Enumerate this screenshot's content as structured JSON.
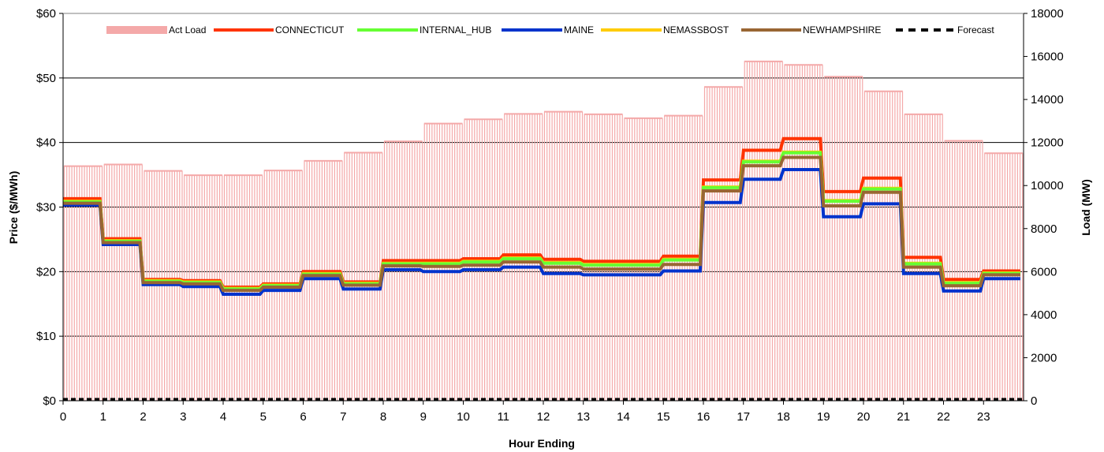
{
  "chart_data": {
    "type": "line",
    "xlabel": "Hour Ending",
    "ylabel": "Price ($/MWh)",
    "y2label": "Load (MW)",
    "x_ticks": [
      0,
      1,
      2,
      3,
      4,
      5,
      6,
      7,
      8,
      9,
      10,
      11,
      12,
      13,
      14,
      15,
      16,
      17,
      18,
      19,
      20,
      21,
      22,
      23
    ],
    "y_ticks": [
      "$0",
      "$10",
      "$20",
      "$30",
      "$40",
      "$50",
      "$60"
    ],
    "y_tick_values": [
      0,
      10,
      20,
      30,
      40,
      50,
      60
    ],
    "y2_ticks": [
      "0",
      "2000",
      "4000",
      "6000",
      "8000",
      "10000",
      "12000",
      "14000",
      "16000",
      "18000"
    ],
    "y2_tick_values": [
      0,
      2000,
      4000,
      6000,
      8000,
      10000,
      12000,
      14000,
      16000,
      18000
    ],
    "ylim": [
      0,
      60
    ],
    "y2lim": [
      0,
      18000
    ],
    "xlim": [
      0,
      24
    ],
    "grid": "horizontal",
    "legend_position": "top",
    "load_series": {
      "name": "Act Load",
      "color": "#f4a9a9",
      "values": [
        10900,
        10980,
        10680,
        10480,
        10480,
        10700,
        11150,
        11530,
        12050,
        12880,
        13080,
        13330,
        13430,
        13310,
        13130,
        13250,
        14580,
        15770,
        15610,
        15060,
        14380,
        13310,
        12080,
        11500
      ]
    },
    "series": [
      {
        "name": "CONNECTICUT",
        "color": "#ff3300",
        "values": [
          31.3,
          25.1,
          18.8,
          18.6,
          17.6,
          18.1,
          20.0,
          18.4,
          21.7,
          21.7,
          22.0,
          22.6,
          21.9,
          21.6,
          21.6,
          22.4,
          34.2,
          38.8,
          40.6,
          32.4,
          34.5,
          22.2,
          18.8,
          20.1
        ]
      },
      {
        "name": "INTERNAL_HUB",
        "color": "#66ff33",
        "values": [
          30.8,
          24.7,
          18.5,
          18.3,
          17.3,
          17.8,
          19.6,
          18.1,
          21.2,
          21.2,
          21.5,
          22.0,
          21.3,
          21.0,
          21.0,
          21.8,
          33.0,
          37.0,
          38.4,
          30.9,
          32.8,
          21.2,
          18.2,
          19.7
        ]
      },
      {
        "name": "MAINE",
        "color": "#0033cc",
        "values": [
          30.3,
          24.2,
          18.0,
          17.7,
          16.5,
          17.1,
          18.9,
          17.3,
          20.3,
          20.0,
          20.3,
          20.7,
          19.7,
          19.5,
          19.5,
          20.1,
          30.7,
          34.3,
          35.8,
          28.5,
          30.5,
          19.7,
          17.0,
          18.9
        ]
      },
      {
        "name": "NEMASSBOST",
        "color": "#ffcc00",
        "values": [
          30.9,
          24.8,
          18.6,
          18.4,
          17.4,
          17.9,
          19.7,
          18.2,
          21.3,
          21.3,
          21.6,
          22.1,
          21.4,
          21.1,
          21.1,
          21.9,
          33.1,
          37.1,
          38.5,
          31.0,
          32.9,
          21.3,
          18.3,
          19.8
        ]
      },
      {
        "name": "NEWHAMPSHIRE",
        "color": "#996633",
        "values": [
          30.6,
          24.5,
          18.3,
          18.1,
          17.1,
          17.6,
          19.4,
          17.9,
          20.9,
          20.8,
          21.0,
          21.5,
          20.7,
          20.4,
          20.4,
          21.1,
          32.5,
          36.4,
          37.7,
          30.2,
          32.3,
          20.7,
          17.8,
          19.5
        ]
      }
    ],
    "forecast": {
      "name": "Forecast",
      "color": "#000000",
      "value": 0
    }
  }
}
